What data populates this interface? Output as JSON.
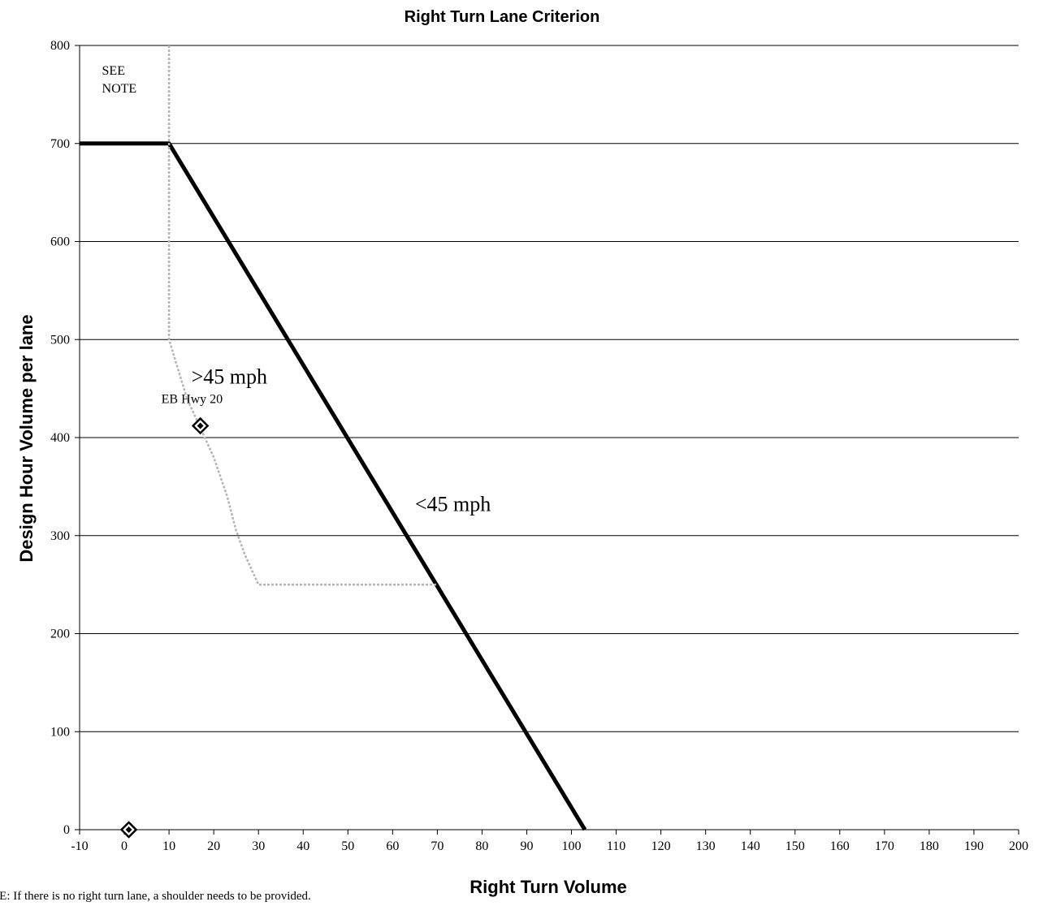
{
  "chart_data": {
    "type": "line",
    "title": "Right Turn Lane Criterion",
    "xlabel": "Right Turn Volume",
    "ylabel": "Design Hour Volume per lane",
    "xlim": [
      -10,
      200
    ],
    "ylim": [
      0,
      800
    ],
    "x_ticks": [
      -10,
      0,
      10,
      20,
      30,
      40,
      50,
      60,
      70,
      80,
      90,
      100,
      110,
      120,
      130,
      140,
      150,
      160,
      170,
      180,
      190,
      200
    ],
    "y_ticks": [
      0,
      100,
      200,
      300,
      400,
      500,
      600,
      700,
      800
    ],
    "grid": "horizontal",
    "legend": "none",
    "series": [
      {
        "style": "thick-black",
        "color": "#000000",
        "points": [
          [
            -10,
            700
          ],
          [
            10,
            700
          ],
          [
            103,
            0
          ]
        ]
      },
      {
        "style": "thin-gray",
        "color": "#b5b5b5",
        "points": [
          [
            10,
            800
          ],
          [
            10,
            500
          ],
          [
            12,
            470
          ],
          [
            14,
            440
          ],
          [
            17,
            410
          ],
          [
            20,
            380
          ],
          [
            23,
            340
          ],
          [
            25,
            305
          ],
          [
            27,
            280
          ],
          [
            30,
            250
          ],
          [
            70,
            250
          ]
        ]
      }
    ],
    "markers": [
      {
        "label": "EB Hwy 20",
        "x": 17,
        "y": 412
      },
      {
        "label": "",
        "x": 1,
        "y": 0
      }
    ],
    "annotations": [
      {
        "text": "SEE NOTE",
        "lines": [
          "SEE",
          "NOTE"
        ],
        "x": -5,
        "y": 770
      },
      {
        "text": ">45 mph",
        "x": 15,
        "y": 455,
        "size": "large"
      },
      {
        "text": "<45 mph",
        "x": 65,
        "y": 325,
        "size": "large"
      }
    ],
    "footnote": "TE:  If there is no right turn lane, a shoulder needs to be provided."
  }
}
